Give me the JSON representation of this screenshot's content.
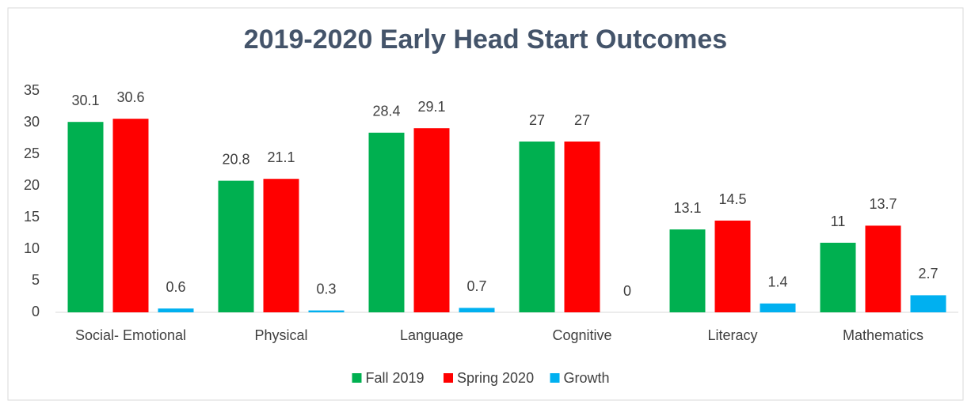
{
  "chart_data": {
    "type": "bar",
    "title": "2019-2020 Early Head Start Outcomes",
    "categories": [
      "Social- Emotional",
      "Physical",
      "Language",
      "Cognitive",
      "Literacy",
      "Mathematics"
    ],
    "series": [
      {
        "name": "Fall 2019",
        "color": "#00b050",
        "values": [
          30.1,
          20.8,
          28.4,
          27,
          13.1,
          11
        ]
      },
      {
        "name": "Spring 2020",
        "color": "#ff0000",
        "values": [
          30.6,
          21.1,
          29.1,
          27,
          14.5,
          13.7
        ]
      },
      {
        "name": "Growth",
        "color": "#00b0f0",
        "values": [
          0.6,
          0.3,
          0.7,
          0,
          1.4,
          2.7
        ]
      }
    ],
    "ylim": [
      0,
      35
    ],
    "yticks": [
      0,
      5,
      10,
      15,
      20,
      25,
      30,
      35
    ],
    "grid": false,
    "legend": "bottom"
  }
}
